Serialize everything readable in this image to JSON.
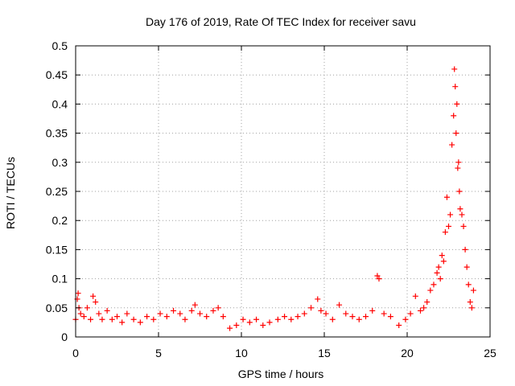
{
  "chart_data": {
    "type": "scatter",
    "title": "Day 176 of 2019, Rate Of TEC Index for receiver savu",
    "xlabel": "GPS time / hours",
    "ylabel": "ROTI / TECUs",
    "xlim": [
      0,
      25
    ],
    "ylim": [
      0,
      0.5
    ],
    "xticks": [
      0,
      5,
      10,
      15,
      20,
      25
    ],
    "xtick_labels": [
      "0",
      "5",
      "10",
      "15",
      "20",
      "25"
    ],
    "yticks": [
      0,
      0.05,
      0.1,
      0.15,
      0.2,
      0.25,
      0.3,
      0.35,
      0.4,
      0.45,
      0.5
    ],
    "ytick_labels": [
      "0",
      "0.05",
      "0.1",
      "0.15",
      "0.2",
      "0.25",
      "0.3",
      "0.35",
      "0.4",
      "0.45",
      "0.5"
    ],
    "grid": true,
    "marker": "+",
    "color": "#ff0000",
    "series": [
      {
        "x": [
          0.0,
          0.1,
          0.15,
          0.2,
          0.3,
          0.5,
          0.7,
          0.9,
          1.05,
          1.2,
          1.4,
          1.6,
          1.9,
          2.2,
          2.5,
          2.8,
          3.1,
          3.5,
          3.9,
          4.3,
          4.7,
          5.1,
          5.5,
          5.9,
          6.3,
          6.6,
          7.0,
          7.2,
          7.5,
          7.9,
          8.3,
          8.6,
          8.9,
          9.3,
          9.7,
          10.1,
          10.5,
          10.9,
          11.3,
          11.7,
          12.2,
          12.6,
          13.0,
          13.4,
          13.8,
          14.2,
          14.6,
          14.8,
          15.1,
          15.5,
          15.9,
          16.3,
          16.7,
          17.1,
          17.5,
          17.9,
          18.2,
          18.3,
          18.6,
          19.0,
          19.5,
          19.9,
          20.2,
          20.5,
          20.8,
          21.0,
          21.2,
          21.4,
          21.6,
          21.8,
          21.9,
          22.0,
          22.1,
          22.2,
          22.3,
          22.4,
          22.5,
          22.6,
          22.7,
          22.8,
          22.85,
          22.9,
          22.95,
          23.0,
          23.05,
          23.1,
          23.15,
          23.2,
          23.3,
          23.4,
          23.5,
          23.6,
          23.7,
          23.8,
          23.9,
          24.0
        ],
        "y": [
          0.03,
          0.065,
          0.075,
          0.05,
          0.04,
          0.035,
          0.05,
          0.03,
          0.07,
          0.06,
          0.04,
          0.03,
          0.045,
          0.03,
          0.035,
          0.025,
          0.04,
          0.03,
          0.025,
          0.035,
          0.03,
          0.04,
          0.035,
          0.045,
          0.04,
          0.03,
          0.045,
          0.055,
          0.04,
          0.035,
          0.045,
          0.05,
          0.035,
          0.015,
          0.02,
          0.03,
          0.025,
          0.03,
          0.02,
          0.025,
          0.03,
          0.035,
          0.03,
          0.035,
          0.04,
          0.05,
          0.065,
          0.045,
          0.04,
          0.03,
          0.055,
          0.04,
          0.035,
          0.03,
          0.035,
          0.045,
          0.105,
          0.1,
          0.04,
          0.035,
          0.02,
          0.03,
          0.04,
          0.07,
          0.045,
          0.05,
          0.06,
          0.08,
          0.09,
          0.11,
          0.12,
          0.1,
          0.14,
          0.13,
          0.18,
          0.24,
          0.19,
          0.21,
          0.33,
          0.38,
          0.46,
          0.43,
          0.35,
          0.4,
          0.29,
          0.3,
          0.25,
          0.22,
          0.21,
          0.19,
          0.15,
          0.12,
          0.09,
          0.06,
          0.05,
          0.08
        ]
      }
    ]
  }
}
